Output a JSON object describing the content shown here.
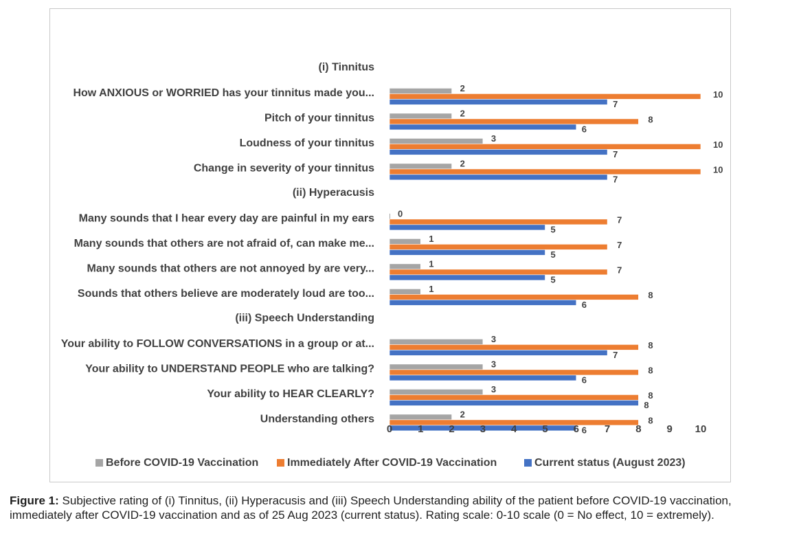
{
  "chart_data": {
    "type": "bar",
    "orientation": "horizontal",
    "sections": [
      {
        "title": "(i) Tinnitus",
        "categories": [
          "How ANXIOUS or WORRIED has your tinnitus made you...",
          "Pitch of your tinnitus",
          "Loudness of your tinnitus",
          "Change in severity of your tinnitus"
        ]
      },
      {
        "title": "(ii) Hyperacusis",
        "categories": [
          "Many sounds that I hear every day are painful in my ears",
          "Many sounds that others are not afraid of, can make me...",
          "Many sounds that others are not annoyed by are very...",
          "Sounds that others believe are moderately loud are too..."
        ]
      },
      {
        "title": "(iii) Speech Understanding",
        "categories": [
          "Your ability to FOLLOW CONVERSATIONS in a group or at...",
          "Your ability to UNDERSTAND PEOPLE who are talking?",
          "Your ability to HEAR CLEARLY?",
          "Understanding others"
        ]
      }
    ],
    "series": [
      {
        "name": "Before COVID-19 Vaccination",
        "color": "#a5a5a5",
        "values": [
          2,
          2,
          3,
          2,
          0,
          1,
          1,
          1,
          3,
          3,
          3,
          2
        ]
      },
      {
        "name": "Immediately After COVID-19 Vaccination",
        "color": "#ed7d31",
        "values": [
          10,
          8,
          10,
          10,
          7,
          7,
          7,
          8,
          8,
          8,
          8,
          8
        ]
      },
      {
        "name": "Current status (August 2023)",
        "color": "#4472c4",
        "values": [
          7,
          6,
          7,
          7,
          5,
          5,
          5,
          6,
          7,
          6,
          8,
          6
        ]
      }
    ],
    "xlim": [
      0,
      10
    ],
    "xticks": [
      "0",
      "1",
      "2",
      "3",
      "4",
      "5",
      "6",
      "7",
      "8",
      "9",
      "10"
    ],
    "legend_position": "bottom",
    "grid": false
  },
  "caption": {
    "label": "Figure 1:",
    "text": " Subjective rating of (i) Tinnitus, (ii) Hyperacusis and (iii) Speech Understanding ability of the patient before COVID-19 vaccination, immediately after COVID-19 vaccination and as of 25 Aug 2023 (current status). Rating scale: 0-10 scale (0 = No effect, 10 = extremely)."
  }
}
